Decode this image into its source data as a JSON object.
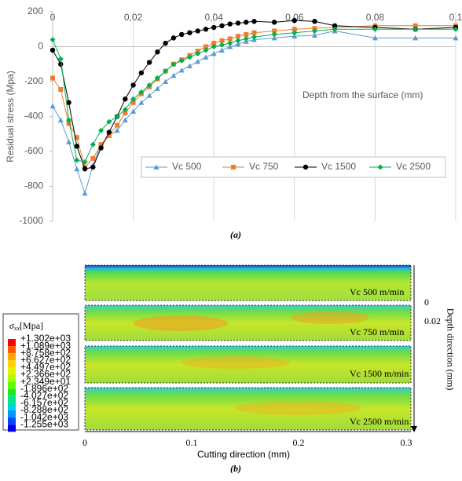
{
  "chart_data": {
    "type": "line",
    "y_label": "Residual stress (Mpa)",
    "x_label": "Depth from the surface (mm)",
    "caption": "(a)",
    "x": [
      0,
      0.002,
      0.004,
      0.006,
      0.008,
      0.01,
      0.012,
      0.014,
      0.016,
      0.018,
      0.02,
      0.022,
      0.024,
      0.026,
      0.028,
      0.03,
      0.032,
      0.034,
      0.036,
      0.038,
      0.04,
      0.042,
      0.044,
      0.046,
      0.048,
      0.05,
      0.055,
      0.06,
      0.065,
      0.07,
      0.08,
      0.09,
      0.1
    ],
    "series": [
      {
        "name": "Vc 500",
        "color": "#5b9bd5",
        "marker": "triangle",
        "values": [
          -340,
          -420,
          -545,
          -700,
          -840,
          -680,
          -560,
          -510,
          -480,
          -420,
          -370,
          -320,
          -280,
          -240,
          -200,
          -165,
          -135,
          -110,
          -85,
          -60,
          -40,
          -20,
          0,
          15,
          30,
          40,
          50,
          60,
          65,
          90,
          50,
          50,
          50
        ]
      },
      {
        "name": "Vc 750",
        "color": "#ed7d31",
        "marker": "square",
        "values": [
          -180,
          -245,
          -440,
          -520,
          -690,
          -640,
          -560,
          -510,
          -450,
          -380,
          -320,
          -270,
          -230,
          -185,
          -140,
          -100,
          -75,
          -50,
          -25,
          0,
          20,
          35,
          45,
          60,
          70,
          80,
          90,
          100,
          105,
          110,
          120,
          120,
          120
        ]
      },
      {
        "name": "Vc 1500",
        "color": "#000000",
        "marker": "circle",
        "values": [
          -20,
          -100,
          -320,
          -570,
          -700,
          -690,
          -580,
          -490,
          -400,
          -300,
          -220,
          -150,
          -90,
          -30,
          20,
          50,
          70,
          80,
          90,
          100,
          110,
          120,
          130,
          135,
          140,
          145,
          140,
          150,
          145,
          120,
          110,
          100,
          110
        ]
      },
      {
        "name": "Vc 2500",
        "color": "#00b050",
        "marker": "diamond",
        "values": [
          40,
          -70,
          -420,
          -650,
          -660,
          -560,
          -480,
          -430,
          -400,
          -360,
          -300,
          -260,
          -220,
          -180,
          -140,
          -100,
          -80,
          -60,
          -40,
          -20,
          0,
          10,
          20,
          35,
          45,
          55,
          70,
          80,
          90,
          100,
          100,
          100,
          100
        ]
      }
    ],
    "xlim": [
      0,
      0.1
    ],
    "ylim": [
      -1000,
      200
    ],
    "xticks": [
      {
        "value": 0,
        "label": "0"
      },
      {
        "value": 0.02,
        "label": "0,02"
      },
      {
        "value": 0.04,
        "label": "0,04"
      },
      {
        "value": 0.06,
        "label": "0,06"
      },
      {
        "value": 0.08,
        "label": "0,08"
      },
      {
        "value": 0.1,
        "label": "0,1"
      }
    ],
    "yticks": [
      -1000,
      -800,
      -600,
      -400,
      -200,
      0,
      200
    ],
    "grid": "x",
    "legend": "lower right"
  },
  "figure_b": {
    "caption": "(b)",
    "x_label": "Cutting direction (mm)",
    "y_label": "Depth direction (mm)",
    "x_ticks": [
      "0",
      "0.1",
      "0.2",
      "0.3"
    ],
    "y_ticks": [
      "0",
      "0.02"
    ],
    "strips": [
      "Vc 500 m/min",
      "Vc 750 m/min",
      "Vc 1500 m/min",
      "Vc 2500 m/min"
    ],
    "legend": {
      "symbol": "σ",
      "subscript": "xx",
      "unit": "[Mpa]",
      "labels": [
        "+1.302e+03",
        "+1.089e+03",
        "+8.758e+02",
        "+6.627e+02",
        "+4.497e+02",
        "+2.366e+02",
        "+2.349e+01",
        "-1.896e+02",
        "-4.027e+02",
        "-6.157e+02",
        "-8.288e+02",
        "-1.042e+03",
        "-1.255e+03"
      ],
      "colors": [
        "#ff0000",
        "#ff5a00",
        "#ffaa00",
        "#ffd200",
        "#e6f000",
        "#aaff00",
        "#5aff00",
        "#22e622",
        "#00e68c",
        "#00d2dc",
        "#0096ff",
        "#0046ff",
        "#0000e6"
      ]
    }
  }
}
